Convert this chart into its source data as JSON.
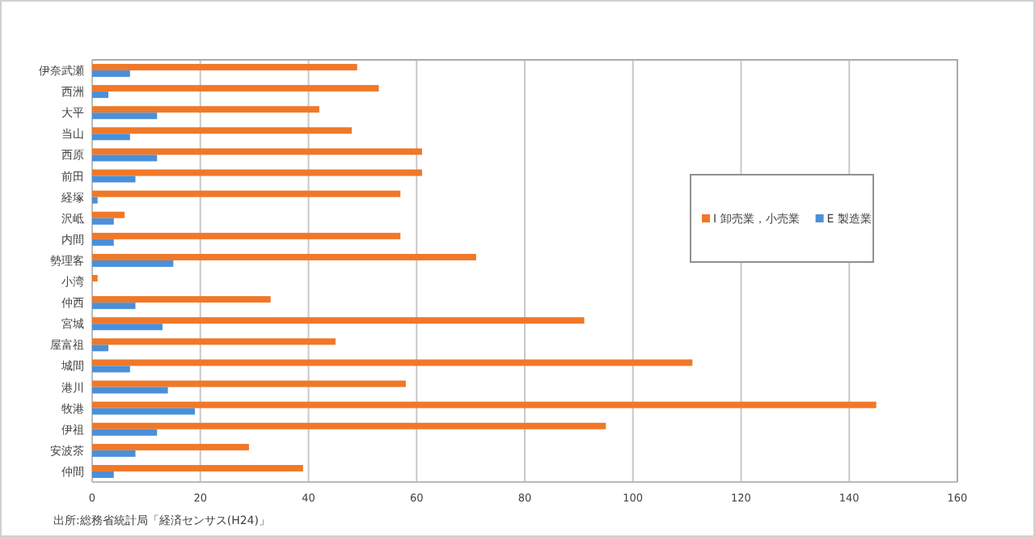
{
  "chart_data": {
    "type": "bar",
    "orientation": "horizontal",
    "categories": [
      "伊奈武瀬",
      "西洲",
      "大平",
      "当山",
      "西原",
      "前田",
      "経塚",
      "沢岻",
      "内間",
      "勢理客",
      "小湾",
      "仲西",
      "宮城",
      "屋富祖",
      "城間",
      "港川",
      "牧港",
      "伊祖",
      "安波茶",
      "仲間"
    ],
    "series": [
      {
        "name": "I 卸売業，小売業",
        "color": "#f07828",
        "values": [
          49,
          53,
          42,
          48,
          61,
          61,
          57,
          6,
          57,
          71,
          1,
          33,
          91,
          45,
          111,
          58,
          145,
          95,
          29,
          39
        ]
      },
      {
        "name": "E 製造業",
        "color": "#4a90d8",
        "values": [
          7,
          3,
          12,
          7,
          12,
          8,
          1,
          4,
          4,
          15,
          0,
          8,
          13,
          3,
          7,
          14,
          19,
          12,
          8,
          4
        ]
      }
    ],
    "xlim": [
      0,
      160
    ],
    "xticks": [
      0,
      20,
      40,
      60,
      80,
      100,
      120,
      140,
      160
    ],
    "grid": "x",
    "legend": "right",
    "annotations": [
      "出所:総務省統計局「経済センサス(H24)」"
    ]
  }
}
